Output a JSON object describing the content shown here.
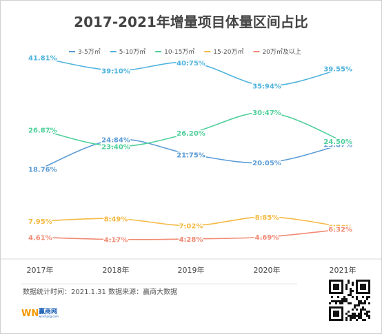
{
  "chart_data": {
    "type": "line",
    "title": "2017-2021年增量项目体量区间占比",
    "categories": [
      "2017年",
      "2018年",
      "2019年",
      "2020年",
      "2021年"
    ],
    "series": [
      {
        "name": "3-5万㎡",
        "color": "#5b9bd5",
        "values": [
          18.76,
          24.84,
          21.75,
          20.05,
          23.87
        ],
        "labels": [
          "18.76%",
          "24.84%",
          "21.75%",
          "20.05%",
          "23.87%"
        ]
      },
      {
        "name": "5-10万㎡",
        "color": "#4fb3dd",
        "values": [
          41.81,
          39.1,
          40.75,
          35.94,
          39.55
        ],
        "labels": [
          "41.81%",
          "39.10%",
          "40.75%",
          "35.94%",
          "39.55%"
        ]
      },
      {
        "name": "10-15万㎡",
        "color": "#4fcf9b",
        "values": [
          26.87,
          23.4,
          26.2,
          30.47,
          24.5
        ],
        "labels": [
          "26.87%",
          "23.40%",
          "26.20%",
          "30.47%",
          "24.50%"
        ]
      },
      {
        "name": "15-20万㎡",
        "color": "#f4b942",
        "values": [
          7.95,
          8.49,
          7.02,
          8.85,
          6.76
        ],
        "labels": [
          "7.95%",
          "8.49%",
          "7.02%",
          "8.85%",
          "6.76%"
        ]
      },
      {
        "name": "20万㎡及以上",
        "color": "#f08a73",
        "values": [
          4.61,
          4.17,
          4.28,
          4.69,
          6.32
        ],
        "labels": [
          "4.61%",
          "4.17%",
          "4.28%",
          "4.69%",
          "6.32%"
        ]
      }
    ],
    "ylim": [
      0,
      45
    ],
    "legend_position": "top",
    "grid": false
  },
  "footer": {
    "note": "数据统计时间：2021.1.31  数据来源：赢商大数据",
    "brand": "赢商网",
    "brand_sub": "winshang.com",
    "logo_mark": "WN"
  }
}
